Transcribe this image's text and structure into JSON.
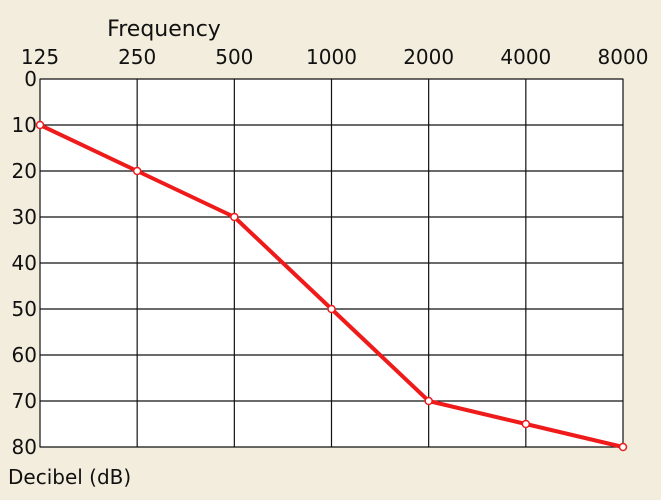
{
  "chart_data": {
    "type": "line",
    "title": "",
    "xlabel": "Frequency",
    "ylabel": "Decibel (dB)",
    "x": [
      "125",
      "250",
      "500",
      "1000",
      "2000",
      "4000",
      "8000"
    ],
    "y_ticks": [
      "0",
      "10",
      "20",
      "30",
      "40",
      "50",
      "60",
      "70",
      "80"
    ],
    "ylim": [
      0,
      80
    ],
    "y_inverted": true,
    "grid": true,
    "series": [
      {
        "values": [
          10,
          20,
          30,
          50,
          70,
          75,
          80
        ]
      }
    ]
  },
  "colors": {
    "background": "#f3eddd",
    "plot_background": "#ffffff",
    "grid": "#111111",
    "series": "#ef1b1b"
  }
}
